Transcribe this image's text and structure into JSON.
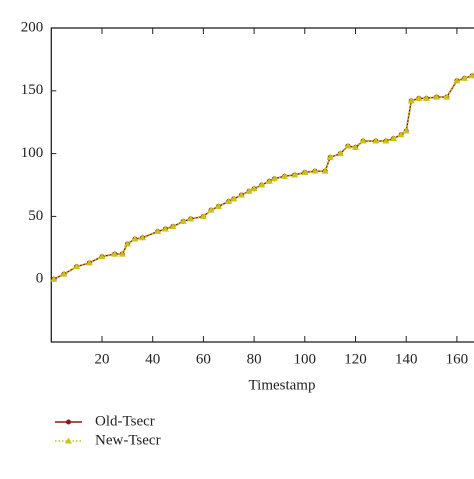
{
  "chart_data": {
    "type": "line",
    "x_label": "Timestamp",
    "x": [
      1,
      5,
      10,
      15,
      20,
      25,
      28,
      30,
      33,
      36,
      42,
      45,
      48,
      52,
      55,
      60,
      63,
      66,
      70,
      72,
      75,
      78,
      80,
      83,
      86,
      88,
      92,
      96,
      100,
      104,
      108,
      110,
      114,
      117,
      120,
      123,
      128,
      132,
      135,
      138,
      140,
      142,
      145,
      148,
      152,
      156,
      160,
      163,
      166
    ],
    "series": [
      {
        "name": "Old-Tsecr",
        "color": "#8b1a1a",
        "marker": "circle",
        "dash": "solid",
        "values": [
          0,
          4,
          10,
          13,
          18,
          20,
          20,
          28,
          32,
          33,
          38,
          40,
          42,
          46,
          48,
          50,
          55,
          58,
          62,
          64,
          67,
          70,
          72,
          75,
          78,
          80,
          82,
          83,
          85,
          86,
          86,
          97,
          100,
          106,
          105,
          110,
          110,
          110,
          112,
          115,
          118,
          142,
          144,
          144,
          145,
          145,
          158,
          160,
          162
        ]
      },
      {
        "name": "New-Tsecr",
        "color": "#c8c21a",
        "marker": "triangle",
        "dash": "dotted",
        "values": [
          0,
          4,
          10,
          13,
          18,
          20,
          20,
          28,
          32,
          33,
          38,
          40,
          42,
          46,
          48,
          50,
          55,
          58,
          62,
          64,
          67,
          70,
          72,
          75,
          78,
          80,
          82,
          83,
          85,
          86,
          86,
          97,
          100,
          106,
          105,
          110,
          110,
          110,
          112,
          115,
          118,
          142,
          144,
          144,
          145,
          145,
          158,
          160,
          162
        ]
      }
    ],
    "xlim": [
      0,
      170
    ],
    "xticks": [
      20,
      40,
      60,
      80,
      100,
      120,
      140,
      160
    ],
    "ylim": [
      -50,
      200
    ],
    "yticks": [
      0,
      50,
      100,
      150,
      200
    ],
    "legend": "bottom-left"
  }
}
